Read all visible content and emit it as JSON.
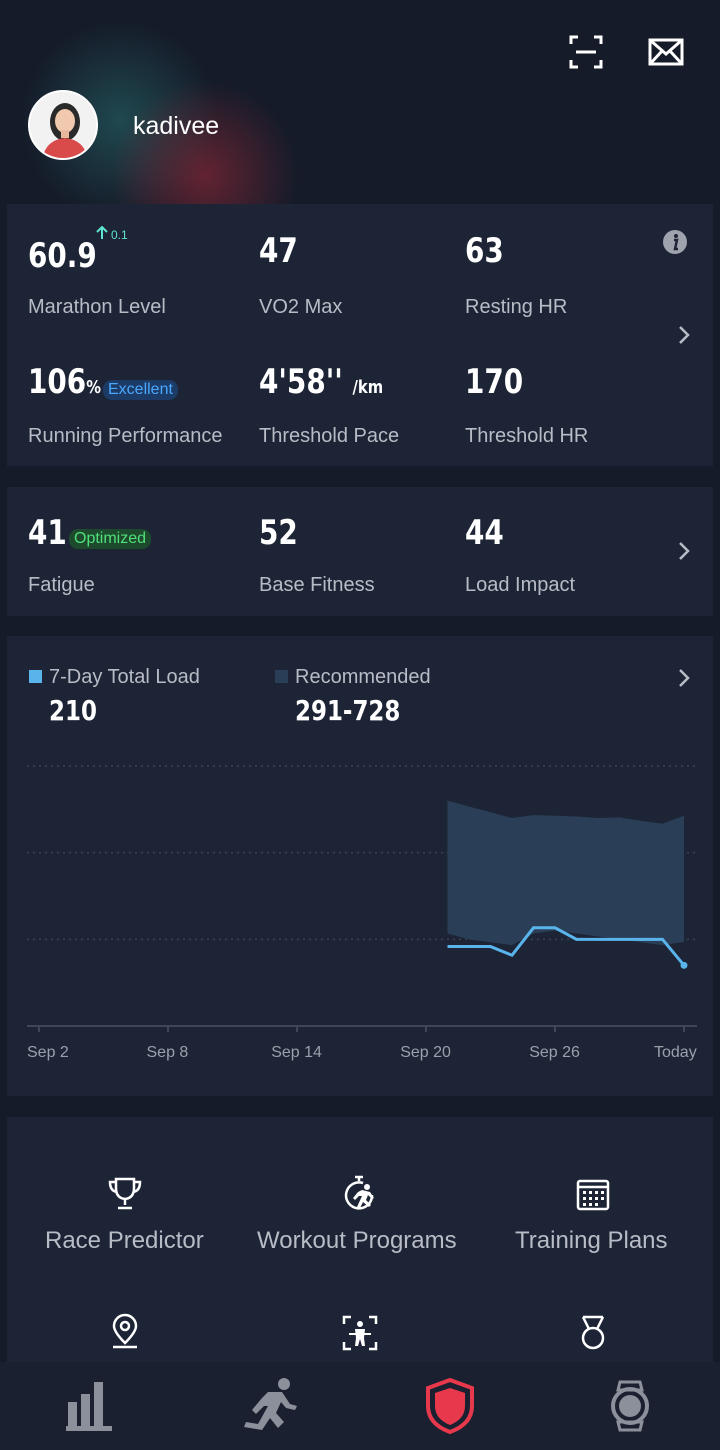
{
  "profile": {
    "username": "kadivee"
  },
  "header": {
    "scan_icon": "scan-icon",
    "mail_icon": "mail-icon"
  },
  "performance": {
    "marathon_level": {
      "value": "60.9",
      "delta": "0.1",
      "label": "Marathon Level"
    },
    "vo2max": {
      "value": "47",
      "label": "VO2 Max"
    },
    "resting_hr": {
      "value": "63",
      "label": "Resting HR"
    },
    "running_performance": {
      "value": "106",
      "unit": "%",
      "badge": "Excellent",
      "label": "Running Performance"
    },
    "threshold_pace": {
      "value": "4'58''",
      "unit": "/km",
      "label": "Threshold Pace"
    },
    "threshold_hr": {
      "value": "170",
      "label": "Threshold HR"
    }
  },
  "fitness": {
    "fatigue": {
      "value": "41",
      "badge": "Optimized",
      "label": "Fatigue"
    },
    "base_fitness": {
      "value": "52",
      "label": "Base Fitness"
    },
    "load_impact": {
      "value": "44",
      "label": "Load Impact"
    }
  },
  "load": {
    "total_label": "7-Day Total Load",
    "total_value": "210",
    "recommended_label": "Recommended",
    "recommended_value": "291-728",
    "colors": {
      "load_line": "#5ab4ec",
      "recommended_band": "#2a3f57"
    }
  },
  "chart_data": {
    "type": "area",
    "title": "7-Day Total Load",
    "x_tick_labels": [
      "Sep 2",
      "Sep 8",
      "Sep 14",
      "Sep 20",
      "Sep 26",
      "Today"
    ],
    "x_range_days": [
      0,
      30
    ],
    "ylim": [
      0,
      900
    ],
    "grid": true,
    "series": [
      {
        "name": "7-Day Total Load",
        "x": [
          19,
          21,
          22,
          23,
          24,
          25,
          26,
          27,
          28,
          29,
          30
        ],
        "values": [
          275,
          275,
          245,
          340,
          340,
          300,
          300,
          300,
          300,
          300,
          210
        ]
      },
      {
        "name": "Recommended",
        "x": [
          19,
          20,
          21,
          22,
          23,
          24,
          25,
          26,
          27,
          28,
          29,
          30
        ],
        "lower": [
          320,
          300,
          290,
          280,
          320,
          330,
          320,
          310,
          300,
          290,
          280,
          291
        ],
        "upper": [
          780,
          760,
          740,
          720,
          730,
          728,
          725,
          720,
          722,
          710,
          700,
          728
        ]
      }
    ]
  },
  "tools": [
    {
      "label": "Race Predictor",
      "icon": "trophy-icon"
    },
    {
      "label": "Workout Programs",
      "icon": "stopwatch-runner-icon"
    },
    {
      "label": "Training Plans",
      "icon": "calendar-icon"
    },
    {
      "label": "",
      "icon": "location-pin-icon"
    },
    {
      "label": "",
      "icon": "body-scan-icon"
    },
    {
      "label": "",
      "icon": "medal-icon"
    }
  ],
  "nav": [
    {
      "name": "stats",
      "icon": "bar-chart-icon",
      "active": false
    },
    {
      "name": "run",
      "icon": "runner-icon",
      "active": false
    },
    {
      "name": "training",
      "icon": "shield-icon",
      "active": true
    },
    {
      "name": "device",
      "icon": "watch-icon",
      "active": false
    }
  ]
}
